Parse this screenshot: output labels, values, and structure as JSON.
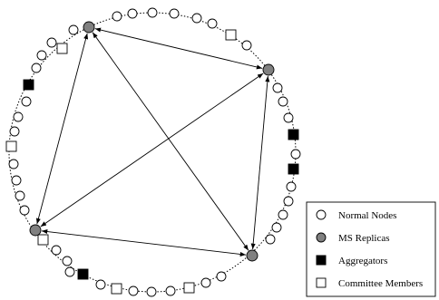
{
  "legend": {
    "normal_nodes": "Normal Nodes",
    "ms_replicas": "MS Replicas",
    "aggregators": "Aggregators",
    "committee_members": "Committee Members"
  },
  "colors": {
    "stroke": "#000000",
    "normal_fill": "#ffffff",
    "replica_fill": "#808080",
    "aggregator_fill": "#000000",
    "committee_fill": "#ffffff"
  },
  "replica_links": [
    [
      "replica-top",
      "replica-right"
    ],
    [
      "replica-top",
      "replica-bottom-left"
    ],
    [
      "replica-top",
      "replica-bottom-right"
    ],
    [
      "replica-right",
      "replica-bottom-left"
    ],
    [
      "replica-right",
      "replica-bottom-right"
    ],
    [
      "replica-bottom-left",
      "replica-bottom-right"
    ]
  ]
}
